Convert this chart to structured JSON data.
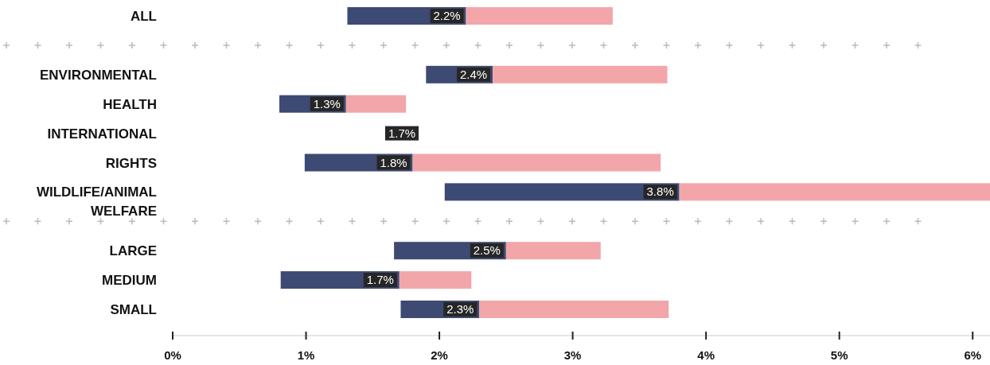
{
  "chart_data": {
    "type": "bar",
    "orientation": "horizontal",
    "categories": [
      "ALL",
      null,
      "ENVIRONMENTAL",
      "HEALTH",
      "INTERNATIONAL",
      "RIGHTS",
      "WILDLIFE/ANIMAL WELFARE",
      null,
      "LARGE",
      "MEDIUM",
      "SMALL"
    ],
    "series": [
      {
        "color": "#3d4a73",
        "base": [
          1.31,
          null,
          1.9,
          0.8,
          null,
          0.99,
          2.04,
          null,
          1.66,
          0.81,
          1.71
        ],
        "values": [
          0.89,
          null,
          0.5,
          0.5,
          null,
          0.81,
          1.76,
          null,
          0.84,
          0.89,
          0.59
        ]
      },
      {
        "color": "#f2a6aa",
        "base": [
          2.2,
          null,
          2.4,
          1.3,
          null,
          1.8,
          3.8,
          null,
          2.5,
          1.7,
          2.3
        ],
        "values": [
          1.1,
          null,
          1.31,
          0.45,
          null,
          1.86,
          2.33,
          null,
          0.71,
          0.54,
          1.42
        ]
      }
    ],
    "annotations": [
      {
        "text": "2.2%",
        "x": 2.2,
        "y": "ALL"
      },
      {
        "text": "2.4%",
        "x": 2.4,
        "y": "ENVIRONMENTAL"
      },
      {
        "text": "1.3%",
        "x": 1.3,
        "y": "HEALTH"
      },
      "1.7%",
      {
        "text": "1.8%",
        "x": 1.8,
        "y": "RIGHTS"
      },
      {
        "text": "3.8%",
        "x": 3.8,
        "y": "WILDLIFE/ANIMAL WELFARE"
      },
      {
        "text": "2.5%",
        "x": 2.5,
        "y": "LARGE"
      },
      {
        "text": "1.7%",
        "x": 1.7,
        "y": "MEDIUM"
      },
      {
        "text": "2.3%",
        "x": 2.3,
        "y": "SMALL"
      }
    ],
    "xlim": [
      0,
      6.13
    ],
    "xticks": [
      {
        "value": 0,
        "label": "0%"
      },
      {
        "value": 1,
        "label": "1%"
      },
      {
        "value": 2,
        "label": "2%"
      },
      {
        "value": 3,
        "label": "3%"
      },
      {
        "value": 4,
        "label": "4%"
      },
      {
        "value": 5,
        "label": "5%"
      },
      {
        "value": 6,
        "label": "6%"
      }
    ],
    "grid": false
  }
}
